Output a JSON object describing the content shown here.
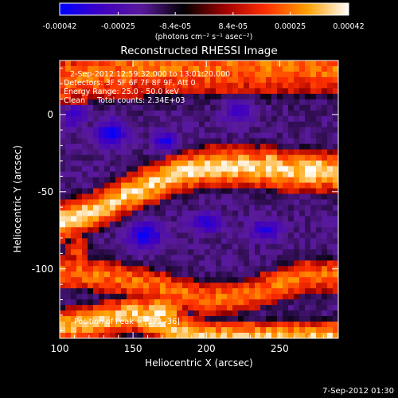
{
  "chart_data": {
    "type": "heatmap",
    "title": "Reconstructed RHESSI Image",
    "xlabel": "Heliocentric X (arcsec)",
    "ylabel": "Heliocentric Y (arcsec)",
    "xlim": [
      100,
      290
    ],
    "ylim": [
      -145,
      35
    ],
    "x_ticks": [
      100,
      150,
      200,
      250
    ],
    "y_ticks": [
      0,
      -50,
      -100
    ],
    "colorbar": {
      "range": [
        -0.00042,
        0.00042
      ],
      "tick_labels": [
        "-0.00042",
        "-0.00025",
        "-8.4e-05",
        "8.4e-05",
        "0.00025",
        "0.00042"
      ],
      "unit_label": "(photons cm⁻² s⁻¹ asec⁻²)",
      "colormap": [
        "#0000ff",
        "#4000c0",
        "#5a1a9a",
        "#000000",
        "#a00000",
        "#ff3000",
        "#ffa000",
        "#ffffff"
      ]
    },
    "annotations": {
      "time": "2-Sep-2012 12:59:32.000 to 13:01:20.000",
      "detectors": "Detectors: 3F 5F 6F 7F 8F 9F, Att 0",
      "energy": "Energy Range: 25.0 - 50.0 keV",
      "clean": "Clean     Total counts: 2.34E+03",
      "peak": "Position of Peak = [272,-36]"
    },
    "peak_position": [
      272,
      -36
    ],
    "bands": [
      {
        "x": [
          100,
          125,
          150,
          175,
          200,
          225,
          250,
          275,
          290
        ],
        "y": [
          22,
          26,
          28,
          30,
          30,
          30,
          30,
          30,
          30
        ],
        "width": 16,
        "amp": 0.55
      },
      {
        "x": [
          100,
          125,
          150,
          175,
          200,
          225,
          250,
          275,
          290
        ],
        "y": [
          -70,
          -62,
          -50,
          -40,
          -34,
          -34,
          -36,
          -37,
          -38
        ],
        "width": 11,
        "amp": 0.85
      },
      {
        "x": [
          100,
          125,
          150,
          175,
          200,
          225,
          250,
          275,
          290
        ],
        "y": [
          -102,
          -104,
          -108,
          -114,
          -120,
          -118,
          -110,
          -105,
          -104
        ],
        "width": 10,
        "amp": 0.55
      },
      {
        "x": [
          100,
          125,
          150,
          175,
          200,
          225,
          250,
          275,
          290
        ],
        "y": [
          -138,
          -134,
          -129,
          -138,
          -145,
          -145,
          -145,
          -145,
          -145
        ],
        "width": 10,
        "amp": 0.8
      }
    ],
    "blobs": [
      {
        "x": 272,
        "y": -36,
        "sx": 14,
        "sy": 11,
        "amp": 1.0
      },
      {
        "x": 243,
        "y": -32,
        "sx": 12,
        "sy": 10,
        "amp": 0.8
      },
      {
        "x": 218,
        "y": -34,
        "sx": 11,
        "sy": 9,
        "amp": 0.75
      },
      {
        "x": 196,
        "y": -38,
        "sx": 9,
        "sy": 9,
        "amp": 0.6
      },
      {
        "x": 168,
        "y": -128,
        "sx": 16,
        "sy": 9,
        "amp": 0.9
      },
      {
        "x": 140,
        "y": -131,
        "sx": 14,
        "sy": 8,
        "amp": 0.75
      },
      {
        "x": 270,
        "y": -103,
        "sx": 16,
        "sy": 8,
        "amp": 0.6
      },
      {
        "x": 112,
        "y": -88,
        "sx": 8,
        "sy": 8,
        "amp": 0.5
      },
      {
        "x": 105,
        "y": 28,
        "sx": 10,
        "sy": 10,
        "amp": 0.55
      },
      {
        "x": 200,
        "y": 33,
        "sx": 16,
        "sy": 6,
        "amp": 0.45
      }
    ],
    "holes": [
      {
        "x": 135,
        "y": -12,
        "sx": 10,
        "sy": 8,
        "amp": 0.5
      },
      {
        "x": 172,
        "y": -18,
        "sx": 8,
        "sy": 6,
        "amp": 0.45
      },
      {
        "x": 110,
        "y": 0,
        "sx": 8,
        "sy": 8,
        "amp": 0.4
      },
      {
        "x": 158,
        "y": -78,
        "sx": 12,
        "sy": 8,
        "amp": 0.5
      },
      {
        "x": 200,
        "y": -70,
        "sx": 10,
        "sy": 6,
        "amp": 0.45
      },
      {
        "x": 240,
        "y": -75,
        "sx": 10,
        "sy": 6,
        "amp": 0.4
      },
      {
        "x": 222,
        "y": 2,
        "sx": 10,
        "sy": 8,
        "amp": 0.35
      }
    ]
  },
  "footer": {
    "date": "7-Sep-2012 01:30"
  }
}
